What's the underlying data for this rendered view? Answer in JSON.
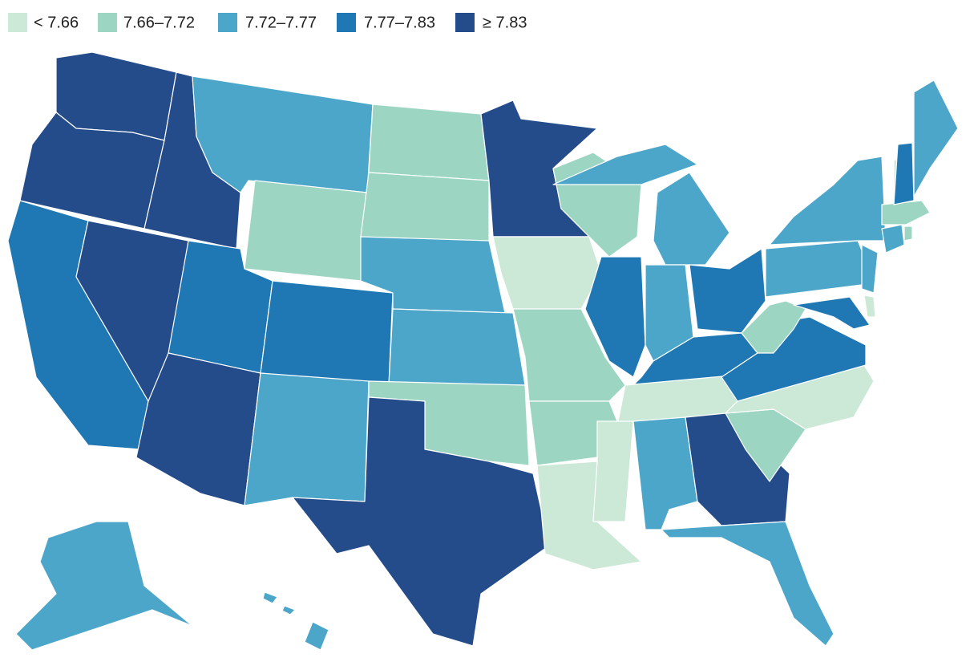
{
  "legend": [
    {
      "label": "< 7.66",
      "color": "#cce8d6"
    },
    {
      "label": "7.66–7.72",
      "color": "#9dd5c3"
    },
    {
      "label": "7.72–7.77",
      "color": "#4ba6ca"
    },
    {
      "label": "7.77–7.83",
      "color": "#1f78b4"
    },
    {
      "label": "≥ 7.83",
      "color": "#244b8a"
    }
  ],
  "regions": [
    4,
    4,
    3,
    4,
    4,
    2,
    1,
    3,
    3,
    4,
    2,
    1,
    1,
    2,
    2,
    1,
    4,
    4,
    0,
    1,
    1,
    0,
    1,
    3,
    2,
    2,
    3,
    3,
    0,
    0,
    2,
    4,
    2,
    1,
    0,
    3,
    1,
    2,
    2,
    2,
    3,
    0,
    2,
    1,
    1,
    0,
    3,
    2,
    2,
    2
  ]
}
